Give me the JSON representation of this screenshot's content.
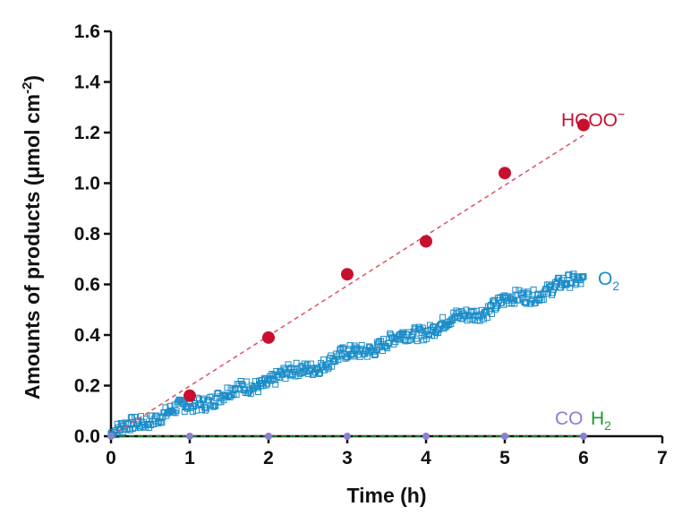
{
  "chart_data": {
    "type": "scatter",
    "title": "",
    "xlabel": "Time (h)",
    "ylabel": {
      "main": "Amounts of products (μmol cm",
      "sup": "-2",
      "close": ")"
    },
    "xlim": [
      0,
      7
    ],
    "ylim": [
      0,
      1.6
    ],
    "xticks": [
      "0",
      "1",
      "2",
      "3",
      "4",
      "5",
      "6",
      "7"
    ],
    "yticks": [
      "0.0",
      "0.2",
      "0.4",
      "0.6",
      "0.8",
      "1.0",
      "1.2",
      "1.4",
      "1.6"
    ],
    "grid": false,
    "series": [
      {
        "name": "HCOO",
        "name_sup": "−",
        "color": "#c8102e",
        "marker": "filled-circle",
        "x": [
          1,
          2,
          3,
          4,
          5,
          6
        ],
        "y": [
          0.16,
          0.39,
          0.64,
          0.77,
          1.04,
          1.23
        ],
        "fit": {
          "x": [
            0,
            6
          ],
          "y": [
            0.0,
            1.19
          ],
          "style": "dashed"
        }
      },
      {
        "name": "O",
        "name_sub": "2",
        "color": "#1a8cc8",
        "marker": "open-square",
        "x_start": 0,
        "x_end": 6,
        "trend": [
          [
            0,
            0.01
          ],
          [
            0.5,
            0.07
          ],
          [
            1,
            0.12
          ],
          [
            2,
            0.22
          ],
          [
            3,
            0.32
          ],
          [
            4,
            0.42
          ],
          [
            5,
            0.53
          ],
          [
            6,
            0.62
          ]
        ]
      },
      {
        "name": "CO",
        "color": "#8a7fd0",
        "marker": "filled-circle",
        "x": [
          0,
          1,
          2,
          3,
          4,
          5,
          6
        ],
        "y": [
          0,
          0,
          0,
          0,
          0,
          0,
          0
        ]
      },
      {
        "name": "H",
        "name_sub": "2",
        "color": "#1f9a2e",
        "marker": "line",
        "x": [
          0,
          6
        ],
        "y": [
          0,
          0
        ],
        "style": "dashed"
      }
    ]
  }
}
